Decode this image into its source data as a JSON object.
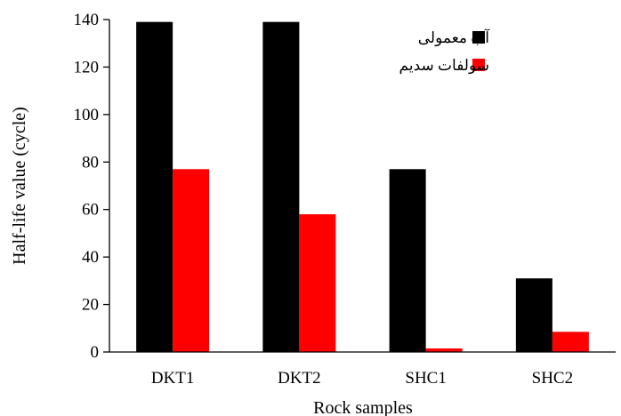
{
  "chart_data": {
    "type": "bar",
    "xlabel": "Rock samples",
    "ylabel": "Half-life value (cycle)",
    "categories": [
      "DKT1",
      "DKT2",
      "SHC1",
      "SHC2"
    ],
    "series": [
      {
        "name": "آب معمولی",
        "color": "#000000",
        "values": [
          139,
          139,
          77,
          31
        ]
      },
      {
        "name": "سولفات سدیم",
        "color": "#ff0000",
        "values": [
          77,
          58,
          1.5,
          8.5
        ]
      }
    ],
    "ylim": [
      0,
      140
    ],
    "yticks": [
      "0",
      "20",
      "40",
      "60",
      "80",
      "100",
      "120",
      "140"
    ],
    "grid": false,
    "legend_position": "top-right"
  }
}
